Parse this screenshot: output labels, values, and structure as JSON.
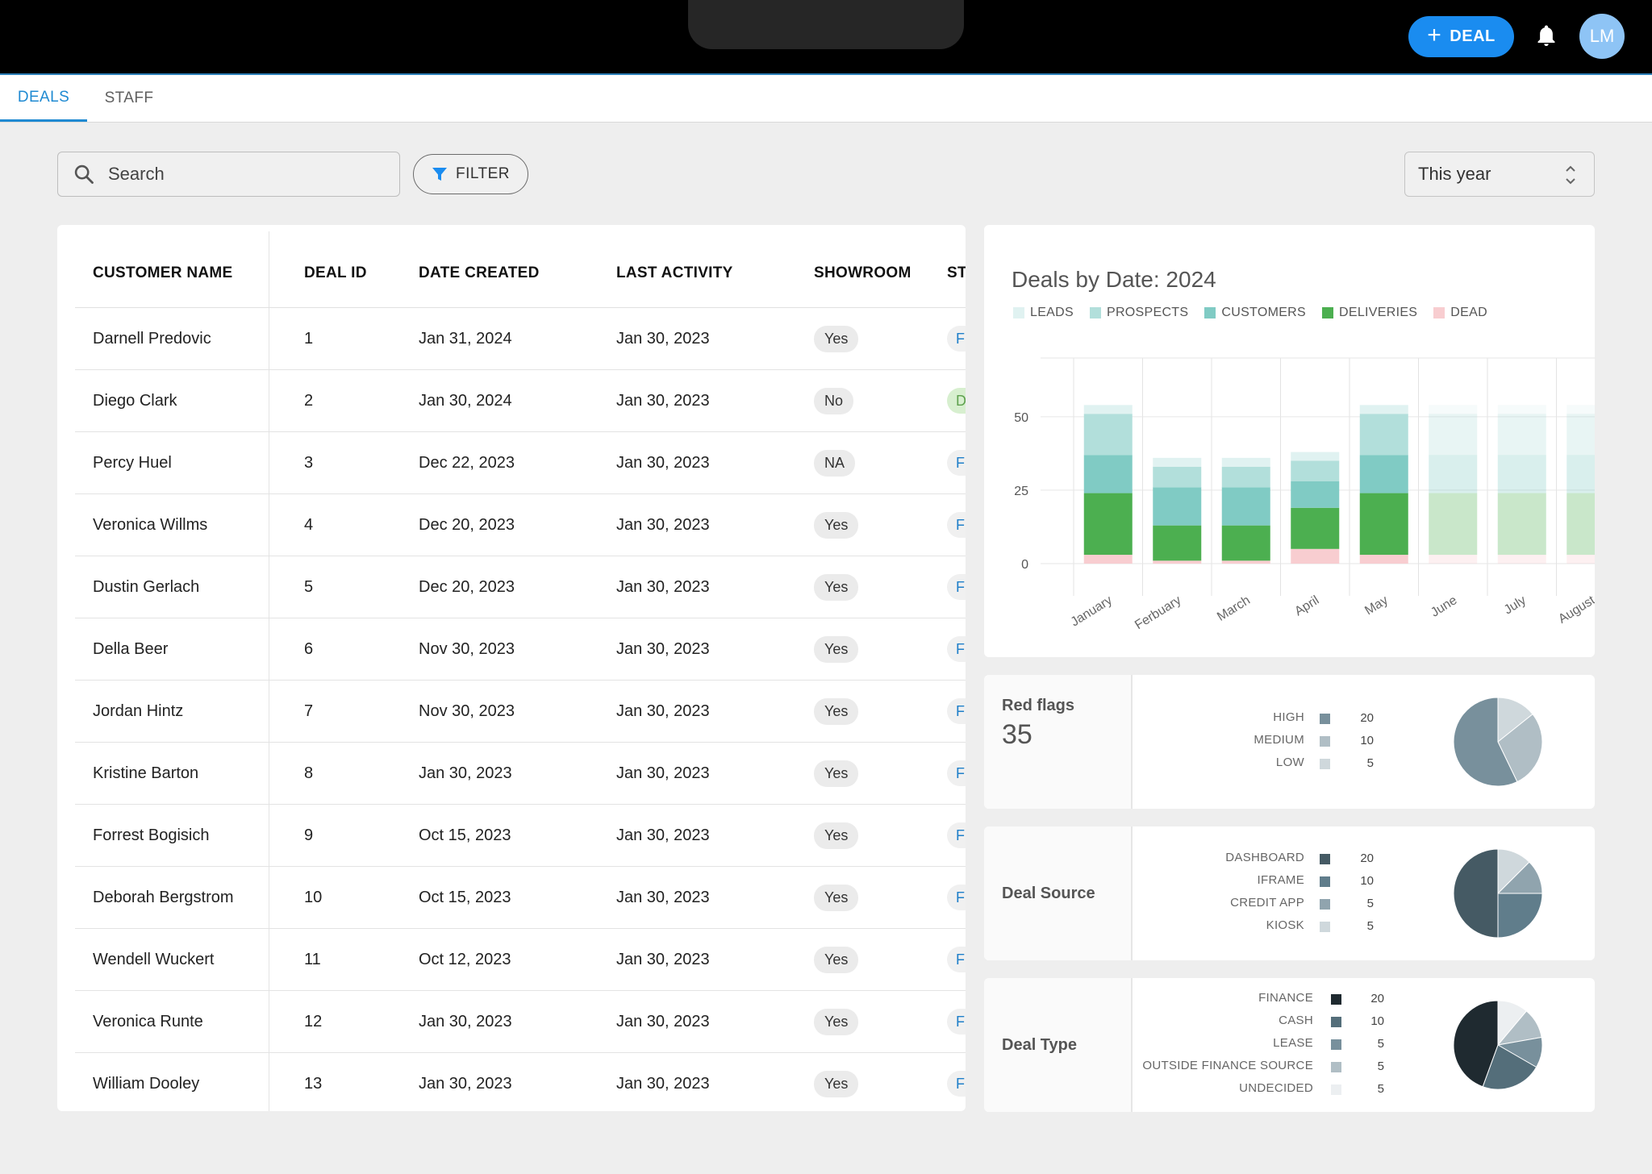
{
  "header": {
    "new_deal_label": "DEAL",
    "new_deal_plus": "+",
    "avatar_initials": "LM"
  },
  "tabs": [
    {
      "label": "DEALS",
      "active": true
    },
    {
      "label": "STAFF",
      "active": false
    }
  ],
  "toolbar": {
    "search_placeholder": "Search",
    "filter_label": "FILTER",
    "period_value": "This year"
  },
  "table": {
    "columns": [
      "CUSTOMER NAME",
      "DEAL ID",
      "DATE CREATED",
      "LAST ACTIVITY",
      "SHOWROOM",
      "ST"
    ],
    "rows": [
      {
        "name": "Darnell Predovic",
        "id": "1",
        "created": "Jan 31, 2024",
        "activity": "Jan 30, 2023",
        "showroom": "Yes",
        "status": "F"
      },
      {
        "name": "Diego Clark",
        "id": "2",
        "created": "Jan 30, 2024",
        "activity": "Jan 30, 2023",
        "showroom": "No",
        "status": "D"
      },
      {
        "name": "Percy Huel",
        "id": "3",
        "created": "Dec 22, 2023",
        "activity": "Jan 30, 2023",
        "showroom": "NA",
        "status": "F"
      },
      {
        "name": "Veronica Willms",
        "id": "4",
        "created": "Dec 20, 2023",
        "activity": "Jan 30, 2023",
        "showroom": "Yes",
        "status": "F"
      },
      {
        "name": "Dustin Gerlach",
        "id": "5",
        "created": "Dec 20, 2023",
        "activity": "Jan 30, 2023",
        "showroom": "Yes",
        "status": "F"
      },
      {
        "name": "Della Beer",
        "id": "6",
        "created": "Nov 30, 2023",
        "activity": "Jan 30, 2023",
        "showroom": "Yes",
        "status": "F"
      },
      {
        "name": "Jordan Hintz",
        "id": "7",
        "created": "Nov 30, 2023",
        "activity": "Jan 30, 2023",
        "showroom": "Yes",
        "status": "F"
      },
      {
        "name": "Kristine Barton",
        "id": "8",
        "created": "Jan 30, 2023",
        "activity": "Jan 30, 2023",
        "showroom": "Yes",
        "status": "F"
      },
      {
        "name": "Forrest Bogisich",
        "id": "9",
        "created": "Oct 15, 2023",
        "activity": "Jan 30, 2023",
        "showroom": "Yes",
        "status": "F"
      },
      {
        "name": "Deborah Bergstrom",
        "id": "10",
        "created": "Oct 15, 2023",
        "activity": "Jan 30, 2023",
        "showroom": "Yes",
        "status": "F"
      },
      {
        "name": "Wendell Wuckert",
        "id": "11",
        "created": "Oct 12, 2023",
        "activity": "Jan 30, 2023",
        "showroom": "Yes",
        "status": "F"
      },
      {
        "name": "Veronica Runte",
        "id": "12",
        "created": "Jan 30, 2023",
        "activity": "Jan 30, 2023",
        "showroom": "Yes",
        "status": "F"
      },
      {
        "name": "William Dooley",
        "id": "13",
        "created": "Jan 30, 2023",
        "activity": "Jan 30, 2023",
        "showroom": "Yes",
        "status": "F"
      }
    ]
  },
  "chart_data": {
    "type": "bar",
    "stacked": true,
    "title": "Deals by Date: 2024",
    "categories": [
      "January",
      "Ferbuary",
      "March",
      "April",
      "May",
      "June",
      "July",
      "August"
    ],
    "yticks": [
      0,
      25,
      50
    ],
    "ylim": [
      -5,
      70
    ],
    "faded_from_index": 5,
    "series": [
      {
        "name": "DEAD",
        "color": "#f8cdd0",
        "values": [
          3,
          1,
          1,
          5,
          3,
          3,
          3,
          3
        ]
      },
      {
        "name": "DELIVERIES",
        "color": "#4caf50",
        "values": [
          21,
          12,
          12,
          14,
          21,
          21,
          21,
          21
        ]
      },
      {
        "name": "CUSTOMERS",
        "color": "#80cbc4",
        "values": [
          13,
          13,
          13,
          9,
          13,
          13,
          13,
          13
        ]
      },
      {
        "name": "PROSPECTS",
        "color": "#b2dfdb",
        "values": [
          14,
          7,
          7,
          7,
          14,
          14,
          14,
          14
        ]
      },
      {
        "name": "LEADS",
        "color": "#e0f2f1",
        "values": [
          3,
          3,
          3,
          3,
          3,
          3,
          3,
          3
        ]
      }
    ],
    "legend_order": [
      "LEADS",
      "PROSPECTS",
      "CUSTOMERS",
      "DELIVERIES",
      "DEAD"
    ]
  },
  "red_flags": {
    "label": "Red flags",
    "value": "35",
    "items": [
      {
        "name": "HIGH",
        "value": 20,
        "color": "#78909c"
      },
      {
        "name": "MEDIUM",
        "value": 10,
        "color": "#b0bec5"
      },
      {
        "name": "LOW",
        "value": 5,
        "color": "#cfd8dc"
      }
    ]
  },
  "deal_source": {
    "label": "Deal Source",
    "items": [
      {
        "name": "DASHBOARD",
        "value": 20,
        "color": "#455a64"
      },
      {
        "name": "IFRAME",
        "value": 10,
        "color": "#607d8b"
      },
      {
        "name": "CREDIT APP",
        "value": 5,
        "color": "#90a4ae"
      },
      {
        "name": "KIOSK",
        "value": 5,
        "color": "#cfd8dc"
      }
    ]
  },
  "deal_type": {
    "label": "Deal Type",
    "items": [
      {
        "name": "FINANCE",
        "value": 20,
        "color": "#1f2a30"
      },
      {
        "name": "CASH",
        "value": 10,
        "color": "#546e7a"
      },
      {
        "name": "LEASE",
        "value": 5,
        "color": "#78909c"
      },
      {
        "name": "OUTSIDE FINANCE SOURCE",
        "value": 5,
        "color": "#b0bec5"
      },
      {
        "name": "UNDECIDED",
        "value": 5,
        "color": "#eceff1"
      }
    ]
  }
}
